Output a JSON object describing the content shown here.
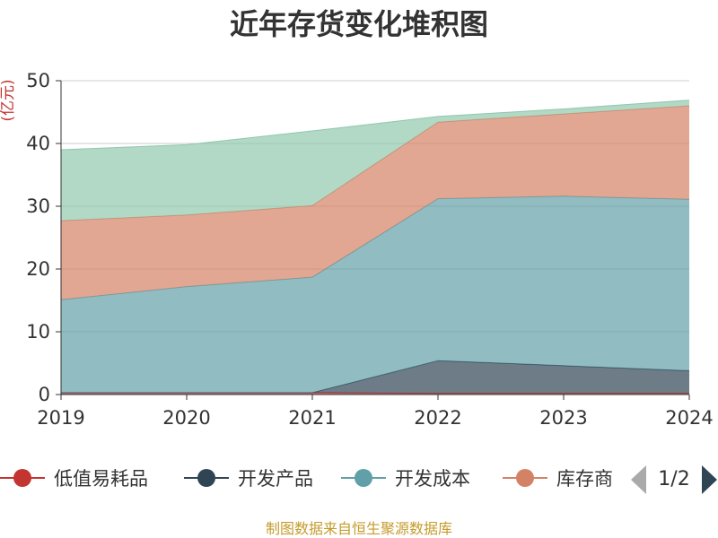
{
  "chart_data": {
    "type": "area",
    "stacked": true,
    "title": "近年存货变化堆积图",
    "ylabel": "(亿元)",
    "xlabel": "",
    "x": [
      "2019",
      "2020",
      "2021",
      "2022",
      "2023",
      "2024"
    ],
    "ylim": [
      0,
      50
    ],
    "yticks": [
      0,
      10,
      20,
      30,
      40,
      50
    ],
    "grid": true,
    "series": [
      {
        "name": "低值易耗品",
        "color": "#c23531",
        "values": [
          0.3,
          0.3,
          0.3,
          0.2,
          0.2,
          0.2
        ]
      },
      {
        "name": "开发产品",
        "color": "#2f4554",
        "values": [
          0,
          0,
          0,
          5.2,
          4.4,
          3.6
        ]
      },
      {
        "name": "开发成本",
        "color": "#61a0a8",
        "values": [
          14.8,
          16.9,
          18.4,
          25.8,
          27.0,
          27.3
        ]
      },
      {
        "name": "库存商品",
        "color": "#d48265",
        "values": [
          12.6,
          11.4,
          11.4,
          12.2,
          13.1,
          14.9
        ]
      },
      {
        "name": "",
        "color": "#91c7ae",
        "values": [
          11.3,
          11.2,
          11.9,
          0.9,
          0.8,
          0.9
        ]
      }
    ],
    "legend": {
      "position": "bottom",
      "visible_items": [
        "低值易耗品",
        "开发产品",
        "开发成本",
        "库存商"
      ],
      "page": "1/2"
    }
  },
  "footer": {
    "source": "制图数据来自恒生聚源数据库"
  }
}
